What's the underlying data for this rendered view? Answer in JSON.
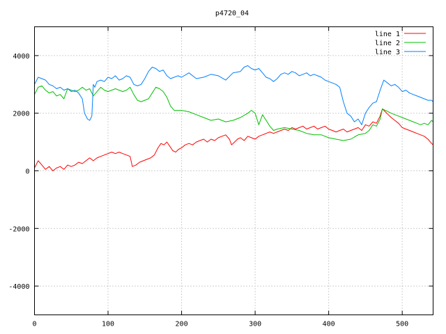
{
  "chart_data": {
    "type": "line",
    "title": "p4720_04",
    "xlabel": "",
    "ylabel": "",
    "xlim": [
      0,
      542
    ],
    "ylim": [
      -5000,
      5000
    ],
    "xticks": [
      0,
      100,
      200,
      300,
      400,
      500
    ],
    "yticks": [
      -4000,
      -2000,
      0,
      2000,
      4000
    ],
    "grid": true,
    "legend_position": "top-right",
    "series": [
      {
        "name": "line 1",
        "color": "#ff0000",
        "x": [
          0,
          5,
          10,
          15,
          20,
          25,
          30,
          35,
          40,
          45,
          50,
          55,
          60,
          65,
          70,
          75,
          80,
          85,
          90,
          95,
          100,
          105,
          110,
          115,
          120,
          125,
          130,
          133,
          138,
          143,
          148,
          153,
          158,
          163,
          168,
          172,
          176,
          180,
          184,
          188,
          192,
          196,
          200,
          205,
          210,
          215,
          220,
          225,
          230,
          235,
          240,
          245,
          250,
          255,
          260,
          265,
          268,
          272,
          276,
          280,
          285,
          290,
          295,
          300,
          305,
          310,
          315,
          320,
          325,
          330,
          335,
          340,
          345,
          350,
          355,
          360,
          365,
          370,
          375,
          380,
          385,
          390,
          395,
          400,
          405,
          410,
          415,
          420,
          425,
          430,
          435,
          440,
          445,
          450,
          455,
          460,
          465,
          470,
          473,
          477,
          481,
          485,
          490,
          495,
          500,
          505,
          510,
          515,
          520,
          525,
          530,
          535,
          540,
          542
        ],
        "y": [
          100,
          350,
          200,
          50,
          150,
          0,
          100,
          150,
          50,
          200,
          150,
          200,
          300,
          250,
          350,
          450,
          350,
          450,
          500,
          550,
          600,
          650,
          600,
          650,
          600,
          550,
          500,
          150,
          200,
          300,
          350,
          400,
          450,
          550,
          800,
          950,
          900,
          1000,
          850,
          700,
          650,
          750,
          800,
          900,
          950,
          900,
          1000,
          1050,
          1100,
          1000,
          1100,
          1050,
          1150,
          1200,
          1250,
          1100,
          900,
          1000,
          1100,
          1150,
          1050,
          1200,
          1150,
          1100,
          1200,
          1250,
          1300,
          1350,
          1300,
          1350,
          1400,
          1450,
          1400,
          1500,
          1450,
          1500,
          1550,
          1450,
          1500,
          1550,
          1450,
          1500,
          1550,
          1450,
          1400,
          1350,
          1400,
          1450,
          1350,
          1400,
          1450,
          1500,
          1400,
          1600,
          1550,
          1700,
          1650,
          1900,
          2150,
          2050,
          1950,
          1850,
          1750,
          1650,
          1500,
          1450,
          1400,
          1350,
          1300,
          1250,
          1200,
          1100,
          950,
          900
        ]
      },
      {
        "name": "line 2",
        "color": "#00c000",
        "x": [
          0,
          5,
          10,
          15,
          20,
          25,
          30,
          35,
          40,
          45,
          50,
          55,
          60,
          65,
          70,
          75,
          80,
          85,
          90,
          95,
          100,
          105,
          110,
          115,
          120,
          125,
          130,
          135,
          140,
          145,
          150,
          155,
          160,
          165,
          170,
          175,
          180,
          185,
          190,
          200,
          210,
          220,
          230,
          240,
          250,
          260,
          270,
          280,
          290,
          295,
          300,
          305,
          310,
          315,
          320,
          325,
          330,
          340,
          350,
          360,
          370,
          380,
          390,
          400,
          410,
          420,
          430,
          440,
          450,
          455,
          460,
          465,
          470,
          473,
          477,
          481,
          485,
          490,
          495,
          500,
          505,
          510,
          515,
          520,
          525,
          530,
          535,
          540,
          542
        ],
        "y": [
          2650,
          2900,
          2950,
          2800,
          2700,
          2750,
          2600,
          2650,
          2500,
          2850,
          2800,
          2750,
          2800,
          2900,
          2800,
          2850,
          2600,
          2750,
          2900,
          2800,
          2750,
          2800,
          2850,
          2800,
          2750,
          2800,
          2900,
          2650,
          2450,
          2400,
          2450,
          2500,
          2700,
          2900,
          2850,
          2750,
          2550,
          2250,
          2100,
          2100,
          2050,
          1950,
          1850,
          1750,
          1800,
          1700,
          1750,
          1850,
          2000,
          2100,
          2000,
          1600,
          1950,
          1750,
          1550,
          1400,
          1450,
          1500,
          1450,
          1400,
          1300,
          1250,
          1250,
          1150,
          1100,
          1050,
          1100,
          1250,
          1300,
          1400,
          1600,
          1550,
          1800,
          2150,
          2100,
          2050,
          2000,
          1950,
          1900,
          1850,
          1800,
          1750,
          1700,
          1650,
          1600,
          1650,
          1600,
          1750,
          1700
        ]
      },
      {
        "name": "line 3",
        "color": "#0080ff",
        "x": [
          0,
          5,
          10,
          15,
          20,
          25,
          30,
          35,
          40,
          45,
          50,
          55,
          60,
          65,
          68,
          72,
          75,
          78,
          80,
          82,
          85,
          90,
          95,
          100,
          105,
          110,
          115,
          120,
          125,
          130,
          135,
          140,
          145,
          150,
          155,
          160,
          165,
          170,
          175,
          180,
          185,
          190,
          195,
          200,
          210,
          220,
          230,
          240,
          250,
          260,
          270,
          280,
          285,
          290,
          295,
          300,
          305,
          310,
          315,
          320,
          325,
          330,
          335,
          340,
          345,
          350,
          355,
          360,
          365,
          370,
          375,
          380,
          385,
          390,
          395,
          400,
          405,
          410,
          415,
          420,
          425,
          430,
          435,
          440,
          445,
          450,
          455,
          460,
          465,
          470,
          475,
          480,
          485,
          490,
          495,
          500,
          505,
          510,
          515,
          520,
          525,
          530,
          535,
          540,
          542
        ],
        "y": [
          3000,
          3250,
          3200,
          3150,
          3000,
          2950,
          2850,
          2900,
          2800,
          2850,
          2750,
          2800,
          2700,
          2500,
          2000,
          1800,
          1750,
          1900,
          3000,
          2900,
          3100,
          3150,
          3100,
          3250,
          3200,
          3300,
          3150,
          3200,
          3300,
          3250,
          3000,
          2950,
          3000,
          3200,
          3450,
          3600,
          3550,
          3450,
          3500,
          3300,
          3200,
          3250,
          3300,
          3250,
          3400,
          3200,
          3250,
          3350,
          3300,
          3150,
          3400,
          3450,
          3600,
          3650,
          3550,
          3500,
          3550,
          3400,
          3250,
          3200,
          3100,
          3200,
          3350,
          3400,
          3350,
          3450,
          3400,
          3300,
          3350,
          3400,
          3300,
          3350,
          3300,
          3250,
          3150,
          3100,
          3050,
          3000,
          2900,
          2400,
          2000,
          1900,
          1700,
          1800,
          1600,
          2000,
          2200,
          2350,
          2400,
          2800,
          3150,
          3050,
          2950,
          3000,
          2900,
          2750,
          2800,
          2700,
          2650,
          2600,
          2550,
          2500,
          2450,
          2450,
          2400
        ]
      }
    ]
  }
}
